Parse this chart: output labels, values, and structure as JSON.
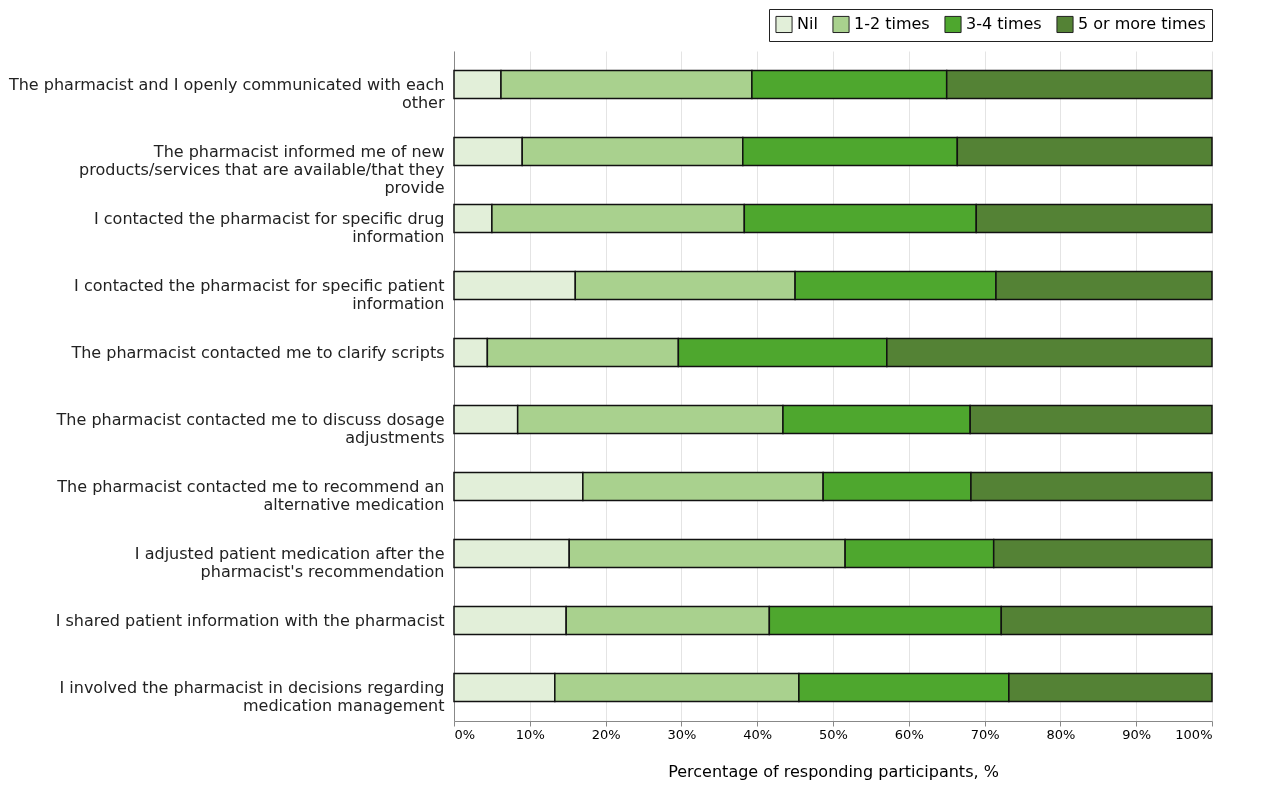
{
  "chart_data": {
    "type": "bar",
    "orientation": "horizontal",
    "stacked": true,
    "xlabel": "Percentage of responding participants, %",
    "categories": [
      "The pharmacist and I openly communicated with each other",
      "The pharmacist informed me of new products/services that are available/that they provide",
      "I contacted the pharmacist for specific drug information",
      "I contacted the pharmacist for specific patient information",
      "The pharmacist contacted me to clarify scripts",
      "The pharmacist contacted me to discuss dosage adjustments",
      "The pharmacist contacted me to recommend an alternative medication",
      "I adjusted patient medication after the pharmacist's recommendation",
      "I shared patient information with the pharmacist",
      "I involved the pharmacist in decisions regarding medication management"
    ],
    "series": [
      {
        "name": "Nil",
        "color": "#e2efd9",
        "values": [
          6.2,
          9.0,
          5.0,
          16.0,
          4.4,
          8.4,
          17.0,
          15.2,
          14.8,
          13.3
        ]
      },
      {
        "name": "1-2 times",
        "color": "#a9d18e",
        "values": [
          33.1,
          29.1,
          33.3,
          29.0,
          25.2,
          35.0,
          31.7,
          36.4,
          26.8,
          32.2
        ]
      },
      {
        "name": "3-4 times",
        "color": "#4ea72e",
        "values": [
          25.7,
          28.3,
          30.6,
          26.5,
          27.5,
          24.7,
          19.5,
          19.6,
          30.6,
          27.7
        ]
      },
      {
        "name": "5 or more times",
        "color": "#548235",
        "values": [
          35.0,
          33.6,
          31.1,
          28.5,
          42.9,
          31.9,
          31.8,
          28.8,
          27.8,
          26.8
        ]
      }
    ],
    "xlim": [
      0,
      100
    ],
    "xticks": [
      {
        "value": 0,
        "label": "0%"
      },
      {
        "value": 10,
        "label": "10%"
      },
      {
        "value": 20,
        "label": "20%"
      },
      {
        "value": 30,
        "label": "30%"
      },
      {
        "value": 40,
        "label": "40%"
      },
      {
        "value": 50,
        "label": "50%"
      },
      {
        "value": 60,
        "label": "60%"
      },
      {
        "value": 70,
        "label": "70%"
      },
      {
        "value": 80,
        "label": "80%"
      },
      {
        "value": 90,
        "label": "90%"
      },
      {
        "value": 100,
        "label": "100%"
      }
    ],
    "grid": "x",
    "legend": "top right"
  }
}
